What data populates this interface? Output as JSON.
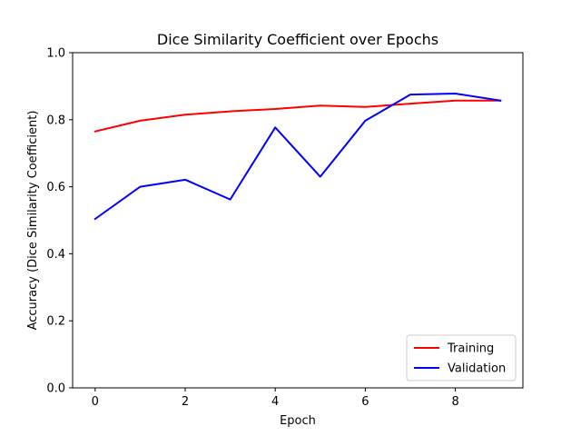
{
  "chart_data": {
    "type": "line",
    "title": "Dice Similarity Coefficient over Epochs",
    "xlabel": "Epoch",
    "ylabel": "Accuracy (Dice Similarity Coefficient)",
    "x": [
      0,
      1,
      2,
      3,
      4,
      5,
      6,
      7,
      8,
      9
    ],
    "xlim": [
      -0.5,
      9.5
    ],
    "ylim": [
      0.0,
      1.0
    ],
    "xticks": [
      "0",
      "2",
      "4",
      "6",
      "8"
    ],
    "xtick_values": [
      0,
      2,
      4,
      6,
      8
    ],
    "yticks": [
      "0.0",
      "0.2",
      "0.4",
      "0.6",
      "0.8",
      "1.0"
    ],
    "ytick_values": [
      0.0,
      0.2,
      0.4,
      0.6,
      0.8,
      1.0
    ],
    "grid": false,
    "legend_position": "bottom-right",
    "series": [
      {
        "name": "Training",
        "color": "#ff0000",
        "values": [
          0.765,
          0.797,
          0.815,
          0.825,
          0.832,
          0.842,
          0.838,
          0.848,
          0.857,
          0.857
        ]
      },
      {
        "name": "Validation",
        "color": "#0000ff",
        "values": [
          0.504,
          0.6,
          0.621,
          0.562,
          0.777,
          0.63,
          0.797,
          0.875,
          0.878,
          0.857
        ]
      }
    ]
  }
}
